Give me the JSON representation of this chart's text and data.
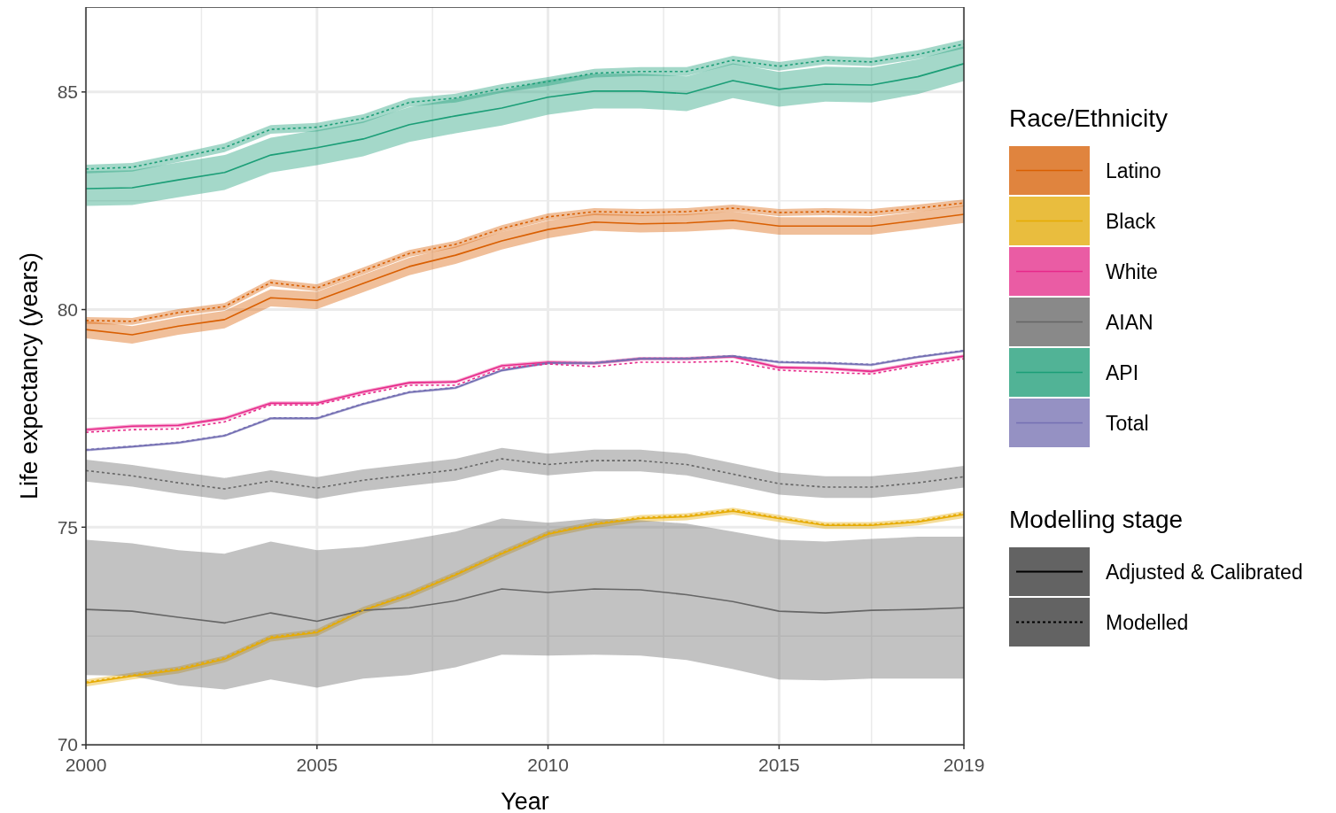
{
  "chart_data": {
    "type": "line",
    "xlabel": "Year",
    "ylabel": "Life expectancy (years)",
    "legend_title": "Race/Ethnicity",
    "legend": "right",
    "grid": true,
    "x": [
      2000,
      2001,
      2002,
      2003,
      2004,
      2005,
      2006,
      2007,
      2008,
      2009,
      2010,
      2011,
      2012,
      2013,
      2014,
      2015,
      2016,
      2017,
      2018,
      2019
    ],
    "xlim": [
      2000,
      2019
    ],
    "xticks": [
      2000,
      {
        "value": 2002.5,
        "label": null
      },
      2005,
      {
        "value": 2007.5,
        "label": null
      },
      2010,
      {
        "value": 2012.5,
        "label": null
      },
      2015,
      {
        "value": 2017,
        "label": null
      },
      2019
    ],
    "ylim": [
      70,
      86.95
    ],
    "yticks": [
      70,
      {
        "value": 72.5,
        "label": null
      },
      75,
      {
        "value": 77.5,
        "label": null
      },
      80,
      {
        "value": 82.5,
        "label": null
      },
      85
    ],
    "annotations": [
      "Modelling stage",
      "Adjusted & Calibrated",
      "Modelled"
    ],
    "series": [
      {
        "name": "Latino",
        "color": "#d95f02",
        "line_style": "solid",
        "values": [
          79.54,
          79.42,
          79.62,
          79.77,
          80.27,
          80.21,
          80.6,
          80.99,
          81.25,
          81.58,
          81.84,
          82.01,
          81.97,
          81.99,
          82.05,
          81.92,
          81.92,
          81.92,
          82.05,
          82.19
        ],
        "lower": [
          79.34,
          79.22,
          79.42,
          79.57,
          80.07,
          80.01,
          80.4,
          80.79,
          81.05,
          81.38,
          81.64,
          81.81,
          81.77,
          81.79,
          81.85,
          81.72,
          81.72,
          81.72,
          81.85,
          81.99
        ],
        "upper": [
          79.74,
          79.62,
          79.82,
          79.97,
          80.47,
          80.41,
          80.8,
          81.19,
          81.45,
          81.78,
          82.04,
          82.21,
          82.17,
          82.19,
          82.25,
          82.12,
          82.12,
          82.12,
          82.25,
          82.39
        ]
      },
      {
        "name": "Black",
        "color": "#e6ab02",
        "line_style": "solid",
        "values": [
          71.42,
          71.58,
          71.72,
          71.97,
          72.45,
          72.58,
          73.09,
          73.45,
          73.9,
          74.39,
          74.84,
          75.06,
          75.2,
          75.24,
          75.37,
          75.2,
          75.04,
          75.04,
          75.12,
          75.29
        ],
        "lower": [
          71.34,
          71.5,
          71.64,
          71.89,
          72.37,
          72.5,
          73.01,
          73.37,
          73.82,
          74.31,
          74.76,
          74.98,
          75.12,
          75.16,
          75.29,
          75.12,
          74.96,
          74.96,
          75.04,
          75.21
        ],
        "upper": [
          71.5,
          71.66,
          71.8,
          72.05,
          72.53,
          72.66,
          73.17,
          73.53,
          73.98,
          74.47,
          74.92,
          75.14,
          75.28,
          75.32,
          75.45,
          75.28,
          75.12,
          75.12,
          75.2,
          75.37
        ]
      },
      {
        "name": "White",
        "color": "#e7298a",
        "line_style": "solid",
        "values": [
          77.24,
          77.32,
          77.34,
          77.5,
          77.85,
          77.85,
          78.11,
          78.32,
          78.34,
          78.71,
          78.79,
          78.77,
          78.87,
          78.87,
          78.92,
          78.67,
          78.65,
          78.58,
          78.77,
          78.93
        ],
        "lower": [
          77.2,
          77.28,
          77.3,
          77.46,
          77.81,
          77.81,
          78.07,
          78.28,
          78.3,
          78.67,
          78.75,
          78.73,
          78.83,
          78.83,
          78.88,
          78.63,
          78.61,
          78.54,
          78.73,
          78.89
        ],
        "upper": [
          77.28,
          77.36,
          77.38,
          77.54,
          77.89,
          77.89,
          78.15,
          78.36,
          78.38,
          78.75,
          78.83,
          78.81,
          78.91,
          78.91,
          78.96,
          78.71,
          78.69,
          78.62,
          78.81,
          78.97
        ]
      },
      {
        "name": "AIAN",
        "color": "#666666",
        "line_style": "solid",
        "values": [
          73.11,
          73.07,
          72.93,
          72.8,
          73.03,
          72.84,
          73.09,
          73.15,
          73.31,
          73.58,
          73.5,
          73.58,
          73.56,
          73.45,
          73.29,
          73.07,
          73.03,
          73.09,
          73.11,
          73.15
        ],
        "lower": [
          71.6,
          71.58,
          71.37,
          71.27,
          71.5,
          71.31,
          71.52,
          71.6,
          71.78,
          72.07,
          72.05,
          72.07,
          72.05,
          71.95,
          71.74,
          71.5,
          71.48,
          71.52,
          71.52,
          71.52
        ],
        "upper": [
          74.71,
          74.63,
          74.47,
          74.39,
          74.67,
          74.47,
          74.55,
          74.71,
          74.9,
          75.2,
          75.1,
          75.2,
          75.16,
          75.08,
          74.9,
          74.71,
          74.67,
          74.73,
          74.78,
          74.78
        ]
      },
      {
        "name": "API",
        "color": "#1b9e77",
        "line_style": "solid",
        "values": [
          82.78,
          82.8,
          82.98,
          83.15,
          83.55,
          83.72,
          83.92,
          84.25,
          84.45,
          84.63,
          84.88,
          85.02,
          85.02,
          84.96,
          85.26,
          85.06,
          85.18,
          85.16,
          85.35,
          85.65
        ],
        "lower": [
          82.38,
          82.4,
          82.58,
          82.75,
          83.15,
          83.32,
          83.52,
          83.85,
          84.05,
          84.23,
          84.48,
          84.62,
          84.62,
          84.56,
          84.86,
          84.66,
          84.78,
          84.76,
          84.95,
          85.25
        ],
        "upper": [
          83.18,
          83.2,
          83.38,
          83.55,
          83.95,
          84.12,
          84.32,
          84.65,
          84.85,
          85.03,
          85.28,
          85.42,
          85.42,
          85.36,
          85.66,
          85.46,
          85.58,
          85.56,
          85.75,
          86.05
        ]
      },
      {
        "name": "Total",
        "color": "#7570b3",
        "line_style": "solid",
        "values": [
          76.77,
          76.85,
          76.94,
          77.1,
          77.5,
          77.5,
          77.83,
          78.1,
          78.2,
          78.6,
          78.77,
          78.77,
          78.87,
          78.87,
          78.93,
          78.79,
          78.77,
          78.73,
          78.91,
          79.05
        ],
        "lower": [
          76.74,
          76.82,
          76.91,
          77.07,
          77.47,
          77.47,
          77.8,
          78.07,
          78.17,
          78.57,
          78.74,
          78.74,
          78.84,
          78.84,
          78.9,
          78.76,
          78.74,
          78.7,
          78.88,
          79.02
        ],
        "upper": [
          76.8,
          76.88,
          76.97,
          77.13,
          77.53,
          77.53,
          77.86,
          78.13,
          78.23,
          78.63,
          78.8,
          78.8,
          78.9,
          78.9,
          78.96,
          78.82,
          78.8,
          78.76,
          78.94,
          79.08
        ]
      },
      {
        "color": "#d95f02",
        "line_style": "dotted",
        "values": [
          79.75,
          79.73,
          79.93,
          80.07,
          80.62,
          80.5,
          80.89,
          81.29,
          81.5,
          81.86,
          82.13,
          82.25,
          82.23,
          82.25,
          82.33,
          82.23,
          82.25,
          82.23,
          82.33,
          82.45
        ],
        "lower": [
          79.67,
          79.65,
          79.85,
          79.99,
          80.54,
          80.42,
          80.81,
          81.21,
          81.42,
          81.78,
          82.05,
          82.17,
          82.15,
          82.17,
          82.25,
          82.15,
          82.17,
          82.15,
          82.25,
          82.37
        ],
        "upper": [
          79.83,
          79.81,
          80.01,
          80.15,
          80.7,
          80.58,
          80.97,
          81.37,
          81.58,
          81.94,
          82.21,
          82.33,
          82.31,
          82.33,
          82.41,
          82.31,
          82.33,
          82.31,
          82.41,
          82.53
        ]
      },
      {
        "color": "#e6ab02",
        "line_style": "dotted",
        "values": [
          71.44,
          71.6,
          71.75,
          72.0,
          72.48,
          72.6,
          73.1,
          73.47,
          73.92,
          74.41,
          74.86,
          75.08,
          75.22,
          75.27,
          75.4,
          75.22,
          75.06,
          75.06,
          75.14,
          75.32
        ]
      },
      {
        "color": "#e7298a",
        "line_style": "dotted",
        "values": [
          77.18,
          77.24,
          77.26,
          77.42,
          77.81,
          77.81,
          78.05,
          78.26,
          78.26,
          78.65,
          78.75,
          78.69,
          78.79,
          78.79,
          78.81,
          78.61,
          78.56,
          78.52,
          78.71,
          78.87
        ]
      },
      {
        "color": "#666666",
        "line_style": "dotted",
        "values": [
          76.3,
          76.18,
          76.02,
          75.88,
          76.06,
          75.9,
          76.08,
          76.2,
          76.32,
          76.57,
          76.44,
          76.53,
          76.53,
          76.44,
          76.22,
          76.0,
          75.92,
          75.92,
          76.02,
          76.16
        ],
        "lower": [
          76.05,
          75.93,
          75.77,
          75.63,
          75.81,
          75.65,
          75.83,
          75.95,
          76.07,
          76.32,
          76.19,
          76.28,
          76.28,
          76.19,
          75.97,
          75.75,
          75.67,
          75.67,
          75.77,
          75.91
        ],
        "upper": [
          76.55,
          76.43,
          76.27,
          76.13,
          76.31,
          76.15,
          76.33,
          76.45,
          76.57,
          76.82,
          76.69,
          76.78,
          76.78,
          76.69,
          76.47,
          76.25,
          76.17,
          76.17,
          76.27,
          76.41
        ]
      },
      {
        "color": "#1b9e77",
        "line_style": "dotted",
        "values": [
          83.23,
          83.27,
          83.49,
          83.72,
          84.14,
          84.19,
          84.39,
          84.76,
          84.86,
          85.08,
          85.24,
          85.43,
          85.47,
          85.47,
          85.73,
          85.59,
          85.73,
          85.69,
          85.86,
          86.1
        ],
        "lower": [
          83.13,
          83.17,
          83.39,
          83.62,
          84.04,
          84.09,
          84.29,
          84.66,
          84.76,
          84.98,
          85.14,
          85.33,
          85.37,
          85.37,
          85.63,
          85.49,
          85.63,
          85.59,
          85.76,
          86.0
        ],
        "upper": [
          83.33,
          83.37,
          83.59,
          83.82,
          84.24,
          84.29,
          84.49,
          84.86,
          84.96,
          85.18,
          85.34,
          85.53,
          85.57,
          85.57,
          85.83,
          85.69,
          85.83,
          85.79,
          85.96,
          86.2
        ]
      },
      {
        "color": "#7570b3",
        "line_style": "dotted",
        "values": [
          76.78,
          76.86,
          76.95,
          77.11,
          77.51,
          77.51,
          77.84,
          78.11,
          78.21,
          78.61,
          78.78,
          78.78,
          78.88,
          78.88,
          78.94,
          78.8,
          78.78,
          78.74,
          78.92,
          79.06
        ]
      }
    ]
  }
}
